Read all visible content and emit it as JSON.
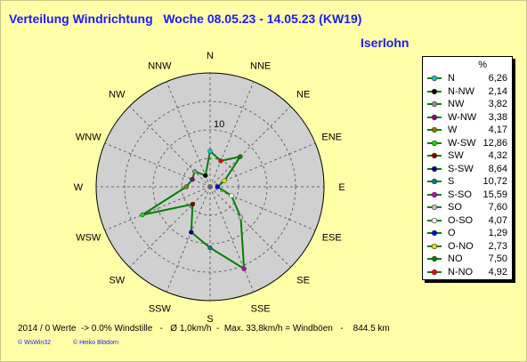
{
  "title": "Verteilung Windrichtung   Woche 08.05.23 - 14.05.23 (KW19)",
  "location": "Iserlohn",
  "footer": "2014 / 0 Werte  -> 0.0% Windstille   -   Ø 1,0km/h  -  Max. 33,8km/h = Windböen   -    844.5 km",
  "copyright_1": "© WsWin32",
  "copyright_2": "© Heiko Blödorn",
  "colors": {
    "background": "#ffffa8",
    "title": "#1a1aff",
    "plot_disc": "#d0d0d0",
    "line": "#008000"
  },
  "chart_data": {
    "type": "radar",
    "title": "Verteilung Windrichtung   Woche 08.05.23 - 14.05.23 (KW19)",
    "unit": "%",
    "ring_label": "10",
    "rlim": [
      0,
      20
    ],
    "grid": true,
    "legend_position": "right",
    "direction_labels": [
      "N",
      "NNE",
      "NE",
      "ENE",
      "E",
      "ESE",
      "SE",
      "SSE",
      "S",
      "SSW",
      "SW",
      "WSW",
      "W",
      "WNW",
      "NW",
      "NNW"
    ],
    "legend_header": "%",
    "legend": [
      {
        "name": "N",
        "value": "6,26",
        "color": "#00c8c8"
      },
      {
        "name": "N-NW",
        "value": "2,14",
        "color": "#000000"
      },
      {
        "name": "NW",
        "value": "3,82",
        "color": "#909090"
      },
      {
        "name": "W-NW",
        "value": "3,38",
        "color": "#800080"
      },
      {
        "name": "W",
        "value": "4,17",
        "color": "#808000"
      },
      {
        "name": "W-SW",
        "value": "12,86",
        "color": "#00e000"
      },
      {
        "name": "SW",
        "value": "4,32",
        "color": "#800000"
      },
      {
        "name": "S-SW",
        "value": "8,64",
        "color": "#000080"
      },
      {
        "name": "S",
        "value": "10,72",
        "color": "#008080"
      },
      {
        "name": "S-SO",
        "value": "15,59",
        "color": "#c000c0"
      },
      {
        "name": "SO",
        "value": "7,60",
        "color": "#c0c0c0"
      },
      {
        "name": "O-SO",
        "value": "4,07",
        "color": "#ffffff"
      },
      {
        "name": "O",
        "value": "1,29",
        "color": "#0000ff"
      },
      {
        "name": "O-NO",
        "value": "2,73",
        "color": "#e0e000"
      },
      {
        "name": "NO",
        "value": "7,50",
        "color": "#008000"
      },
      {
        "name": "N-NO",
        "value": "4,92",
        "color": "#ff0000"
      }
    ],
    "series": [
      {
        "directions": [
          "N",
          "NNE",
          "NE",
          "ENE",
          "E",
          "ESE",
          "SE",
          "SSE",
          "S",
          "SSW",
          "SW",
          "WSW",
          "W",
          "WNW",
          "NW",
          "NNW"
        ],
        "values": [
          6.26,
          4.92,
          7.5,
          2.73,
          1.29,
          4.07,
          7.6,
          15.59,
          10.72,
          8.64,
          4.32,
          12.86,
          4.17,
          3.38,
          3.82,
          2.14
        ],
        "marker_colors": [
          "#00c8c8",
          "#ff0000",
          "#008000",
          "#e0e000",
          "#0000ff",
          "#ffffff",
          "#c0c0c0",
          "#c000c0",
          "#008080",
          "#000080",
          "#800000",
          "#00e000",
          "#808000",
          "#800080",
          "#909090",
          "#000000"
        ]
      }
    ]
  }
}
